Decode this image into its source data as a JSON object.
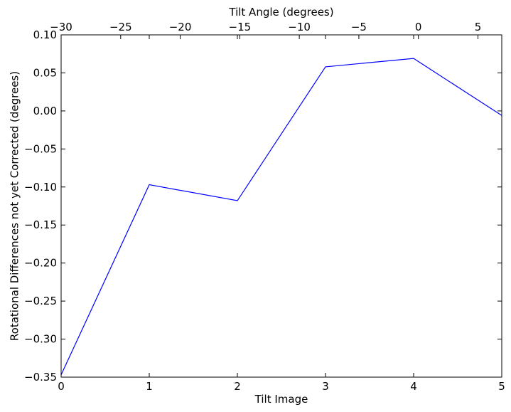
{
  "chart_data": {
    "type": "line",
    "xlabel": "Tilt Image",
    "ylabel": "Rotational Differences not yet Corrected (degrees)",
    "x2label": "Tilt Angle (degrees)",
    "xlim": [
      0,
      5
    ],
    "ylim": [
      -0.35,
      0.1
    ],
    "x2lim": [
      -30,
      7
    ],
    "xticks": [
      0,
      1,
      2,
      3,
      4,
      5
    ],
    "xtick_labels": [
      "0",
      "1",
      "2",
      "3",
      "4",
      "5"
    ],
    "yticks": [
      -0.35,
      -0.3,
      -0.25,
      -0.2,
      -0.15,
      -0.1,
      -0.05,
      0.0,
      0.05,
      0.1
    ],
    "ytick_labels": [
      "−0.35",
      "−0.30",
      "−0.25",
      "−0.20",
      "−0.15",
      "−0.10",
      "−0.05",
      "0.00",
      "0.05",
      "0.10"
    ],
    "x2ticks": [
      -30,
      -25,
      -20,
      -15,
      -10,
      -5,
      0,
      5
    ],
    "x2tick_labels": [
      "−30",
      "−25",
      "−20",
      "−15",
      "−10",
      "−5",
      "0",
      "5"
    ],
    "grid": false,
    "series": [
      {
        "color": "#0000ff",
        "x": [
          0,
          1,
          2,
          3,
          4,
          5
        ],
        "y": [
          -0.347,
          -0.097,
          -0.118,
          0.058,
          0.069,
          -0.006
        ]
      }
    ]
  }
}
